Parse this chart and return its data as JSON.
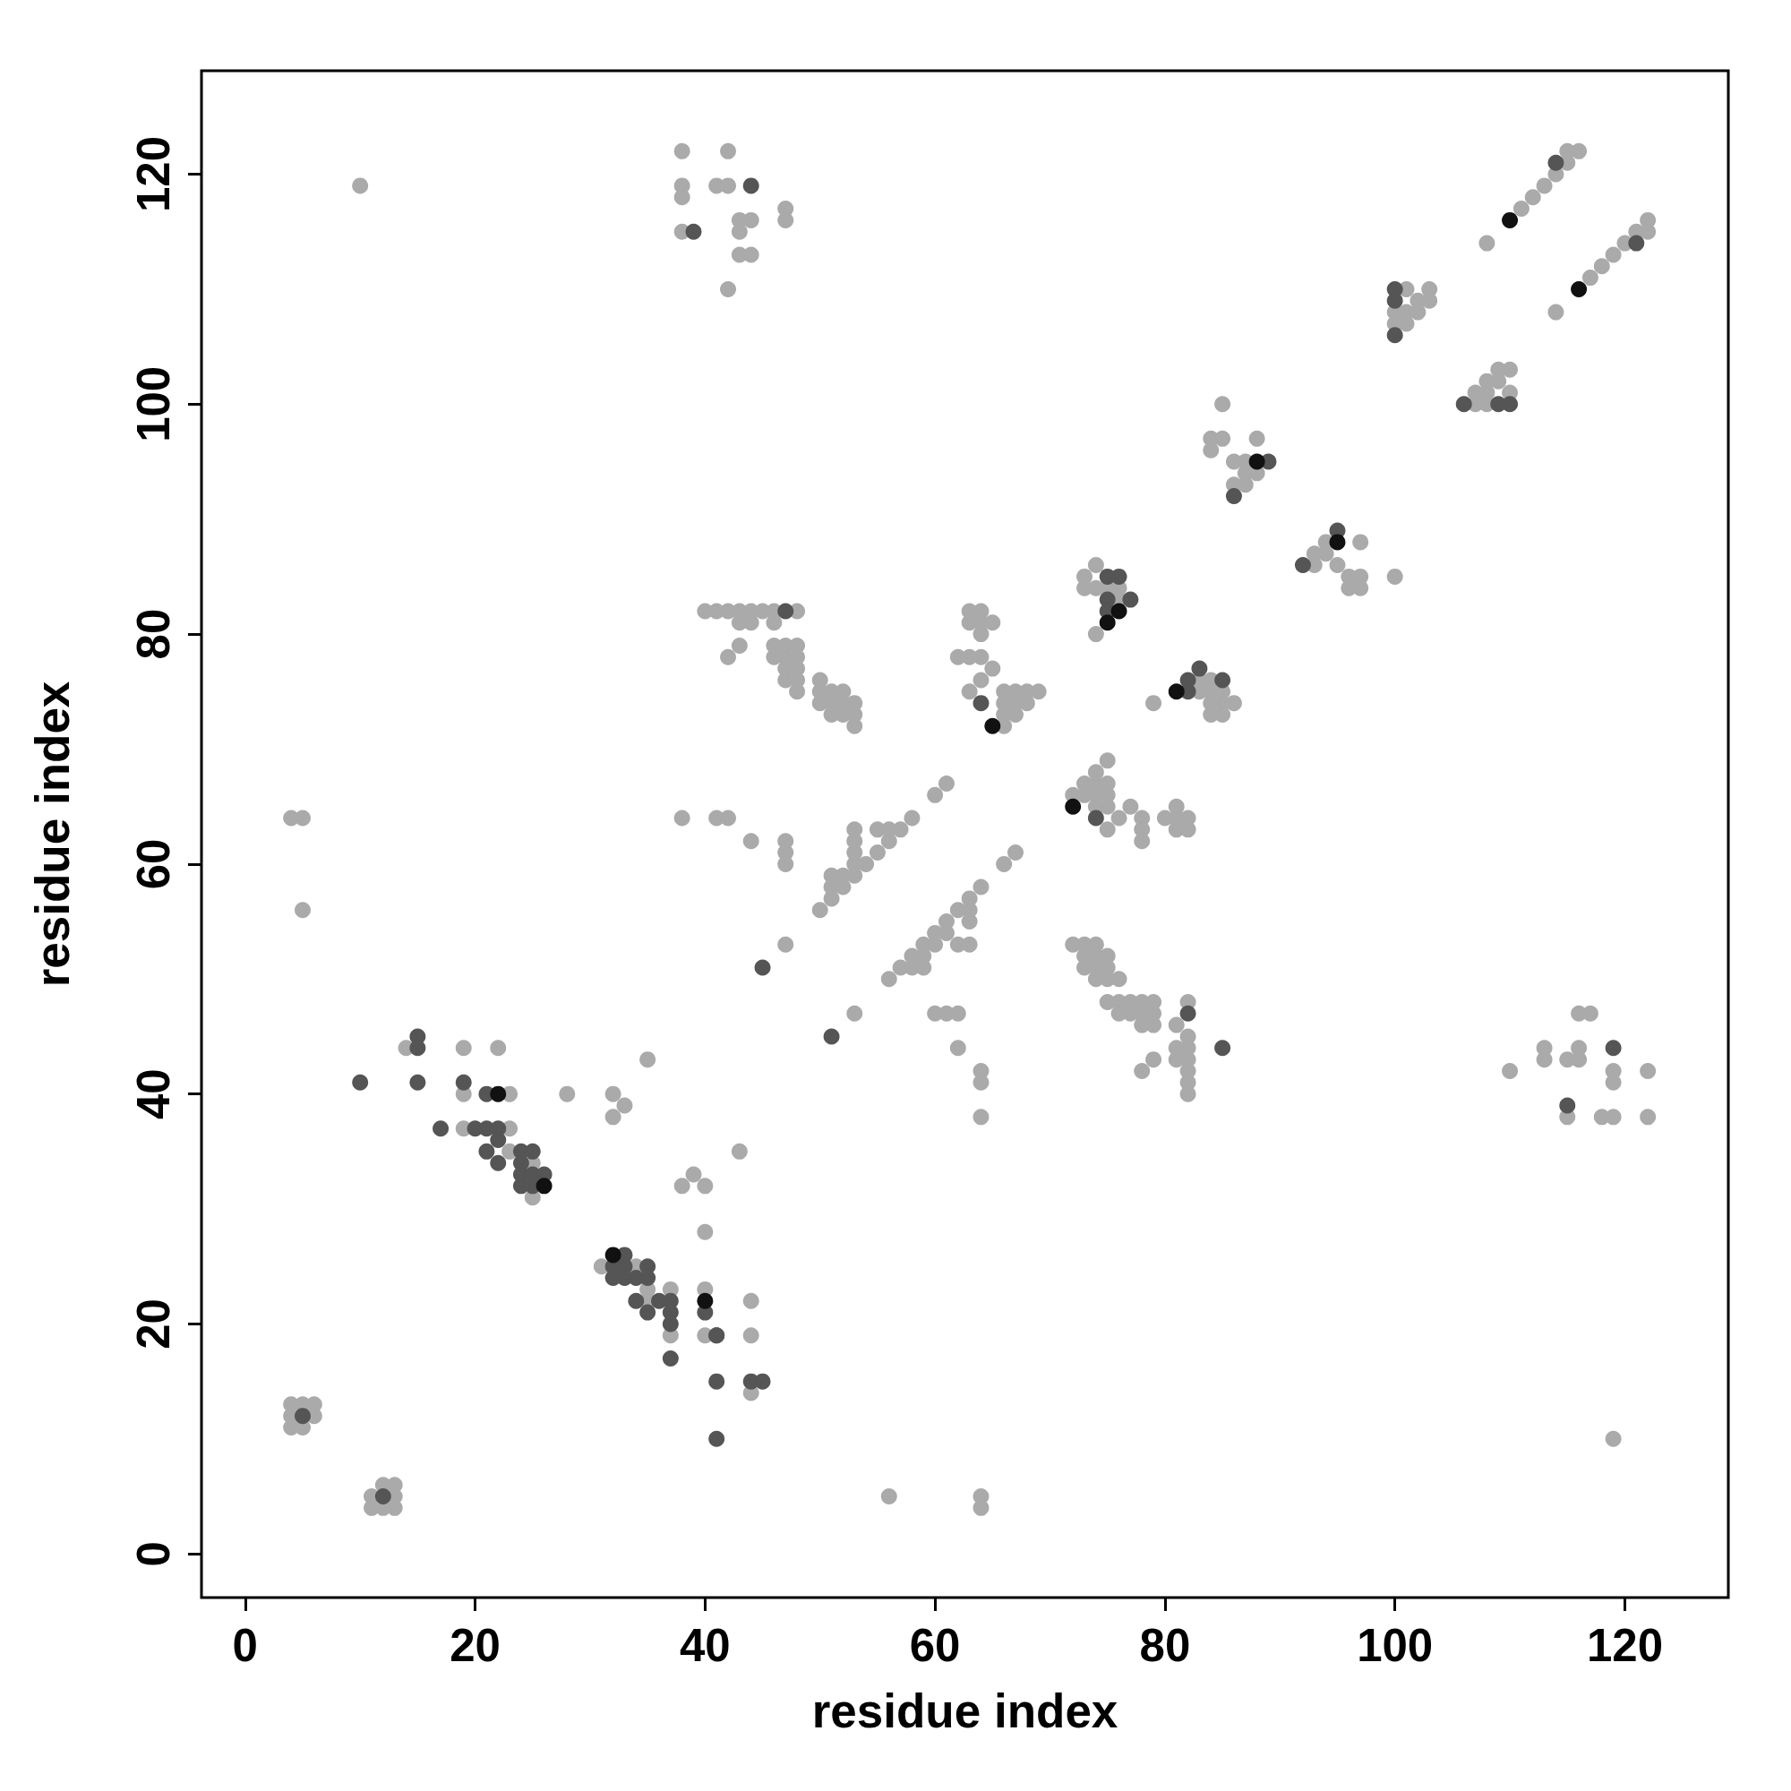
{
  "chart_data": {
    "type": "scatter",
    "xlabel": "residue index",
    "ylabel": "residue index",
    "xlim": [
      -3.8,
      129
    ],
    "ylim": [
      -3.8,
      129
    ],
    "xticks": [
      0,
      20,
      40,
      60,
      80,
      100,
      120
    ],
    "yticks": [
      0,
      20,
      40,
      60,
      80,
      100,
      120
    ],
    "grid": false,
    "marker": "circle",
    "series": [
      {
        "color": "#aaaaaa",
        "x": [
          4,
          5,
          6,
          4,
          6,
          4,
          5,
          11,
          13,
          12,
          13,
          11,
          12,
          13,
          10,
          4,
          5,
          5,
          14,
          19,
          19,
          19,
          22,
          23,
          23,
          23,
          25,
          25,
          28,
          32,
          32,
          33,
          35,
          38,
          39,
          40,
          43,
          40,
          31,
          34,
          35,
          35,
          37,
          37,
          40,
          40,
          44,
          44,
          44,
          56,
          64,
          64,
          38,
          42,
          38,
          38,
          41,
          42,
          38,
          43,
          44,
          43,
          47,
          47,
          43,
          44,
          42,
          38,
          41,
          42,
          44,
          47,
          47,
          47,
          47,
          40,
          41,
          42,
          43,
          44,
          45,
          46,
          48,
          43,
          44,
          46,
          43,
          42,
          46,
          47,
          48,
          46,
          47,
          48,
          47,
          48,
          47,
          48,
          48,
          50,
          50,
          51,
          52,
          50,
          51,
          52,
          53,
          51,
          52,
          53,
          53,
          50,
          51,
          51,
          51,
          52,
          52,
          53,
          53,
          53,
          53,
          53,
          54,
          55,
          55,
          56,
          56,
          57,
          58,
          60,
          61,
          53,
          56,
          57,
          58,
          58,
          59,
          59,
          59,
          60,
          60,
          61,
          61,
          62,
          62,
          63,
          63,
          63,
          63,
          64,
          66,
          67,
          60,
          61,
          62,
          62,
          64,
          64,
          64,
          63,
          64,
          63,
          64,
          65,
          64,
          62,
          63,
          64,
          65,
          64,
          63,
          66,
          67,
          68,
          69,
          66,
          67,
          68,
          66,
          67,
          66,
          72,
          73,
          74,
          75,
          74,
          75,
          74,
          75,
          73,
          74,
          75,
          75,
          76,
          77,
          78,
          78,
          78,
          80,
          81,
          81,
          82,
          81,
          82,
          72,
          73,
          74,
          73,
          74,
          75,
          73,
          74,
          75,
          74,
          75,
          76,
          75,
          76,
          77,
          78,
          79,
          76,
          77,
          78,
          79,
          78,
          79,
          78,
          79,
          81,
          82,
          81,
          82,
          81,
          82,
          82,
          82,
          82,
          82,
          73,
          74,
          73,
          74,
          75,
          76,
          76,
          74,
          79,
          83,
          84,
          83,
          84,
          85,
          86,
          84,
          85,
          84,
          85,
          85,
          84,
          85,
          84,
          88,
          86,
          87,
          87,
          88,
          86,
          87,
          93,
          93,
          94,
          94,
          95,
          97,
          96,
          97,
          96,
          97,
          100,
          101,
          102,
          103,
          103,
          100,
          101,
          102,
          100,
          101,
          107,
          107,
          108,
          108,
          109,
          109,
          110,
          110,
          108,
          108,
          111,
          112,
          113,
          114,
          115,
          115,
          116,
          114,
          117,
          118,
          119,
          120,
          121,
          122,
          122,
          110,
          113,
          113,
          115,
          115,
          116,
          117,
          116,
          116,
          119,
          119,
          118,
          119,
          122,
          122,
          119
        ],
        "values": [
          13,
          13,
          13,
          12,
          12,
          11,
          11,
          5,
          5,
          6,
          6,
          4,
          4,
          4,
          119,
          64,
          64,
          56,
          44,
          44,
          40,
          37,
          44,
          40,
          37,
          35,
          34,
          31,
          40,
          40,
          38,
          39,
          43,
          32,
          33,
          32,
          35,
          28,
          25,
          25,
          23,
          22,
          23,
          19,
          23,
          19,
          22,
          19,
          14,
          5,
          5,
          4,
          122,
          122,
          119,
          118,
          119,
          119,
          115,
          116,
          116,
          115,
          117,
          116,
          113,
          113,
          110,
          64,
          64,
          64,
          62,
          62,
          61,
          60,
          53,
          82,
          82,
          82,
          82,
          82,
          82,
          82,
          82,
          81,
          81,
          81,
          79,
          78,
          79,
          79,
          79,
          78,
          78,
          78,
          77,
          77,
          76,
          76,
          75,
          76,
          75,
          75,
          75,
          74,
          74,
          74,
          74,
          73,
          73,
          73,
          72,
          56,
          57,
          58,
          59,
          58,
          59,
          59,
          60,
          61,
          62,
          63,
          60,
          61,
          63,
          62,
          63,
          63,
          64,
          66,
          67,
          47,
          50,
          51,
          51,
          52,
          51,
          52,
          53,
          53,
          54,
          54,
          55,
          56,
          53,
          56,
          57,
          55,
          53,
          58,
          60,
          61,
          47,
          47,
          47,
          44,
          42,
          41,
          38,
          82,
          82,
          81,
          81,
          81,
          80,
          78,
          78,
          78,
          77,
          76,
          75,
          75,
          75,
          75,
          75,
          74,
          74,
          74,
          73,
          73,
          72,
          66,
          67,
          68,
          69,
          67,
          67,
          66,
          66,
          66,
          65,
          65,
          63,
          64,
          65,
          64,
          63,
          62,
          64,
          65,
          64,
          64,
          63,
          63,
          53,
          53,
          53,
          52,
          52,
          52,
          51,
          51,
          51,
          50,
          50,
          50,
          48,
          48,
          48,
          48,
          48,
          47,
          47,
          47,
          47,
          46,
          46,
          42,
          43,
          46,
          48,
          44,
          45,
          43,
          44,
          43,
          42,
          41,
          40,
          85,
          86,
          84,
          84,
          84,
          84,
          83,
          80,
          74,
          76,
          76,
          75,
          75,
          75,
          74,
          74,
          74,
          73,
          73,
          100,
          97,
          97,
          96,
          97,
          95,
          95,
          94,
          94,
          93,
          93,
          86,
          87,
          87,
          88,
          86,
          88,
          85,
          85,
          84,
          84,
          85,
          110,
          109,
          110,
          109,
          108,
          108,
          108,
          107,
          107,
          101,
          100,
          101,
          102,
          102,
          103,
          103,
          101,
          114,
          100,
          117,
          118,
          119,
          120,
          121,
          122,
          122,
          108,
          111,
          112,
          113,
          114,
          115,
          115,
          116,
          42,
          44,
          43,
          43,
          38,
          47,
          47,
          44,
          43,
          42,
          41,
          38,
          38,
          42,
          38,
          10
        ]
      },
      {
        "color": "#555555",
        "x": [
          5,
          12,
          10,
          15,
          15,
          15,
          17,
          19,
          20,
          21,
          21,
          22,
          21,
          22,
          22,
          24,
          25,
          24,
          24,
          25,
          26,
          25,
          24,
          33,
          32,
          32,
          33,
          33,
          34,
          35,
          35,
          34,
          35,
          36,
          37,
          37,
          37,
          37,
          40,
          41,
          41,
          41,
          41,
          44,
          45,
          44,
          39,
          47,
          45,
          51,
          64,
          74,
          82,
          85,
          75,
          76,
          75,
          77,
          75,
          82,
          82,
          83,
          85,
          89,
          86,
          92,
          95,
          100,
          100,
          100,
          106,
          109,
          110,
          114,
          121,
          115,
          119
        ],
        "values": [
          12,
          5,
          41,
          45,
          44,
          41,
          37,
          41,
          37,
          37,
          40,
          37,
          35,
          36,
          34,
          35,
          35,
          34,
          33,
          33,
          33,
          32,
          32,
          26,
          25,
          24,
          25,
          24,
          24,
          25,
          24,
          22,
          21,
          22,
          22,
          21,
          20,
          17,
          21,
          19,
          15,
          10,
          19,
          15,
          15,
          119,
          115,
          82,
          51,
          45,
          74,
          64,
          47,
          44,
          85,
          85,
          83,
          83,
          82,
          76,
          75,
          77,
          76,
          95,
          92,
          86,
          89,
          110,
          109,
          106,
          100,
          100,
          100,
          121,
          114,
          39,
          44
        ]
      },
      {
        "color": "#111111",
        "x": [
          22,
          26,
          32,
          40,
          65,
          72,
          76,
          75,
          81,
          88,
          95,
          110,
          116
        ],
        "values": [
          40,
          32,
          26,
          22,
          72,
          65,
          82,
          81,
          75,
          95,
          88,
          116,
          110
        ]
      }
    ]
  }
}
